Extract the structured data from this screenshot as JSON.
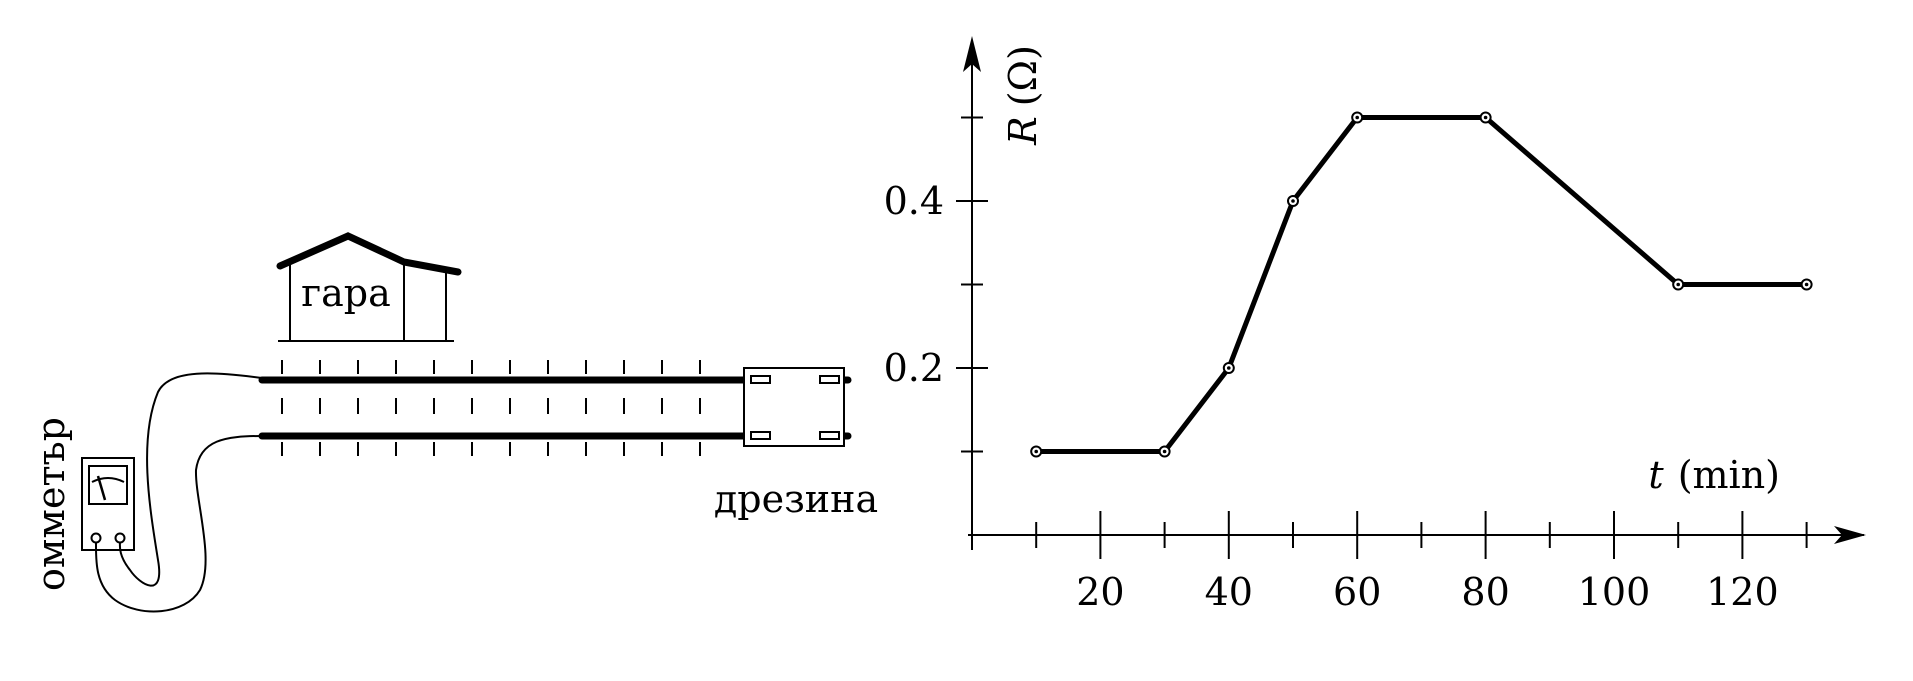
{
  "diagram": {
    "station_label": "гара",
    "trolley_label": "дрезина",
    "meter_label": "омметър"
  },
  "chart_data": {
    "type": "line",
    "x_axis": {
      "symbol": "t",
      "unit": "(min)",
      "ticks_labeled": [
        20,
        40,
        60,
        80,
        100,
        120
      ]
    },
    "y_axis": {
      "symbol": "R",
      "unit": "(Ω)",
      "ticks_labeled": [
        "0.2",
        "0.4"
      ]
    },
    "xlim": [
      0,
      135
    ],
    "ylim": [
      0,
      0.55
    ],
    "series": [
      {
        "x": [
          10,
          30,
          40,
          50,
          60,
          80,
          110,
          130
        ],
        "y": [
          0.1,
          0.1,
          0.2,
          0.4,
          0.5,
          0.5,
          0.3,
          0.3
        ]
      }
    ],
    "minor_ticks_x": [
      10,
      30,
      50,
      70,
      90,
      110,
      130
    ],
    "minor_ticks_y": [
      0.1,
      0.3,
      0.5
    ],
    "grid": false,
    "colors": {
      "line": "#000000"
    }
  }
}
